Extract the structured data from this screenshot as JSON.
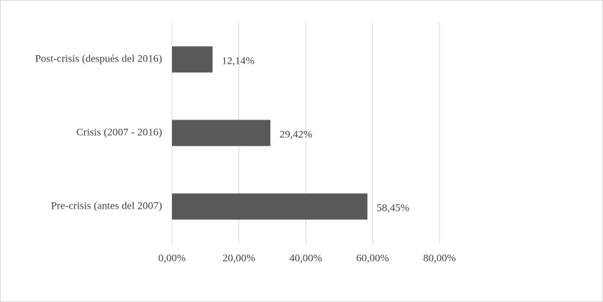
{
  "chart_data": {
    "type": "hbar",
    "categories": [
      "Post-crisis (después del 2016)",
      "Crisis (2007 - 2016)",
      "Pre-crisis (antes del 2007)"
    ],
    "values": [
      12.14,
      29.42,
      58.45
    ],
    "value_labels": [
      "12,14%",
      "29,42%",
      "58,45%"
    ],
    "color": "#595959",
    "xlim": [
      0,
      80
    ],
    "xticks": [
      {
        "value": 0,
        "label": "0,00%"
      },
      {
        "value": 20,
        "label": "20,00%"
      },
      {
        "value": 40,
        "label": "40,00%"
      },
      {
        "value": 60,
        "label": "60,00%"
      },
      {
        "value": 80,
        "label": "80,00%"
      }
    ],
    "grid": true
  }
}
